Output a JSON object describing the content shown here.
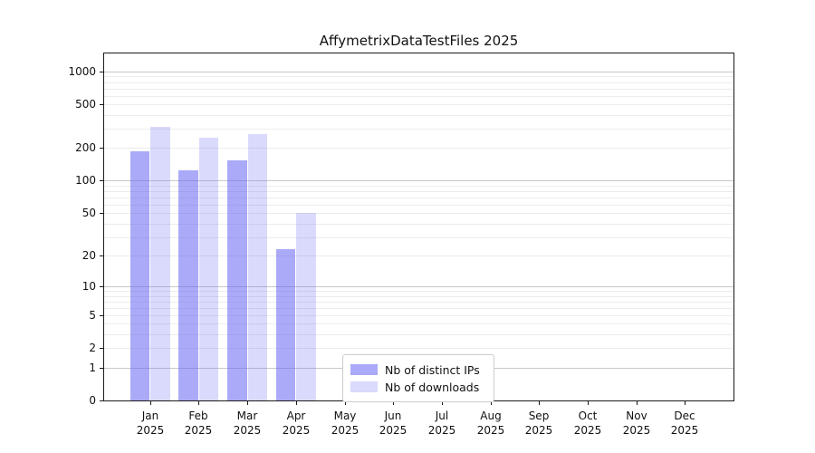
{
  "chart_data": {
    "type": "bar",
    "title": "AffymetrixDataTestFiles 2025",
    "categories": [
      "Jan 2025",
      "Feb 2025",
      "Mar 2025",
      "Apr 2025",
      "May 2025",
      "Jun 2025",
      "Jul 2025",
      "Aug 2025",
      "Sep 2025",
      "Oct 2025",
      "Nov 2025",
      "Dec 2025"
    ],
    "series": [
      {
        "name": "Nb of distinct IPs",
        "color": "rgba(100,100,242,0.55)",
        "values": [
          185,
          125,
          155,
          23,
          0,
          0,
          0,
          0,
          0,
          0,
          0,
          0
        ]
      },
      {
        "name": "Nb of downloads",
        "color": "rgba(100,100,242,0.24)",
        "values": [
          315,
          250,
          270,
          50,
          0,
          0,
          0,
          0,
          0,
          0,
          0,
          0
        ]
      }
    ],
    "xlabel": "",
    "ylabel": "",
    "y_scale": "log1p",
    "ylim": [
      0,
      1462
    ],
    "y_ticks": [
      0,
      1,
      2,
      5,
      10,
      20,
      50,
      100,
      200,
      500,
      1000
    ],
    "grid": {
      "major_ticks": [
        1,
        10,
        100,
        1000
      ],
      "major_color": "#c8c8c8",
      "minor_color": "#ececec"
    },
    "legend_position": "lower-center",
    "axis_color": "#1a1a1a",
    "background": "#ffffff"
  }
}
